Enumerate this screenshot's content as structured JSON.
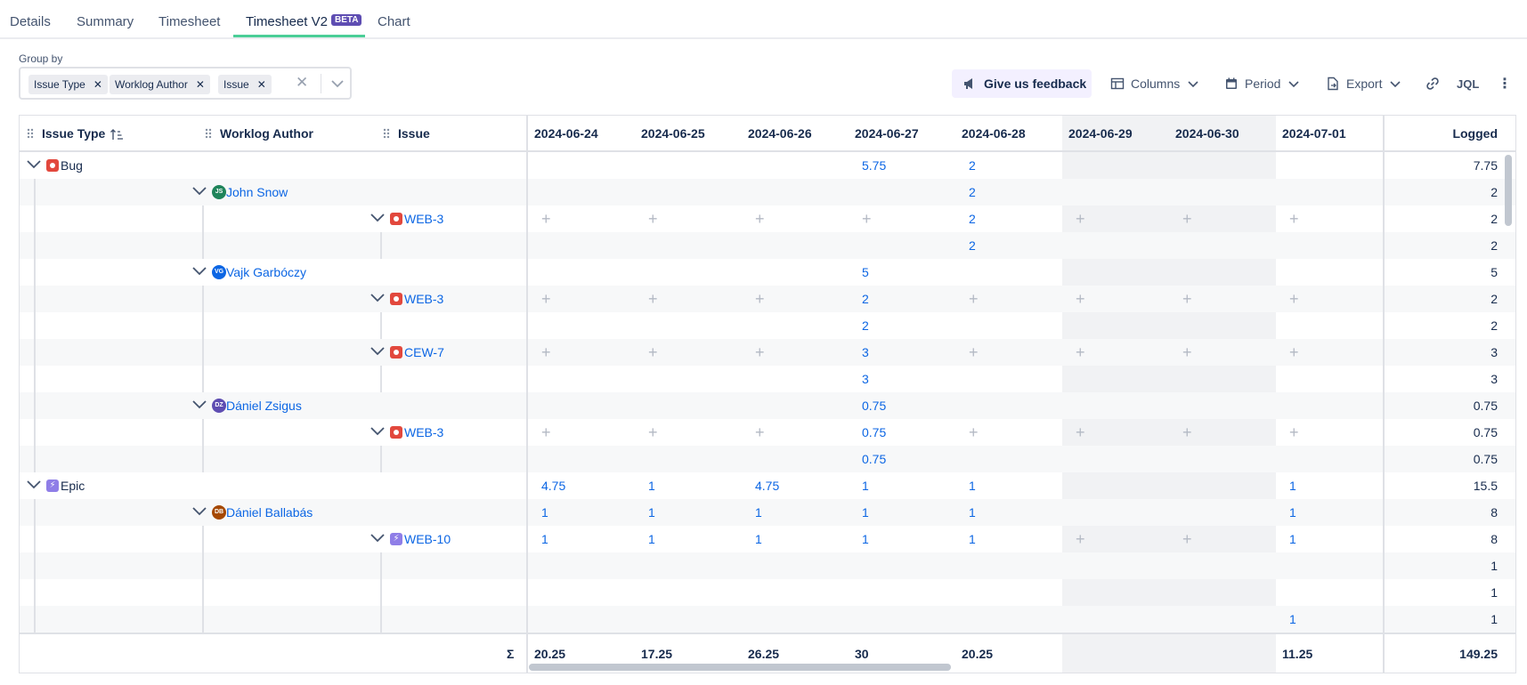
{
  "tabs": [
    {
      "label": "Details"
    },
    {
      "label": "Summary"
    },
    {
      "label": "Timesheet"
    },
    {
      "label": "Timesheet V2",
      "badge": "BETA"
    },
    {
      "label": "Chart"
    }
  ],
  "groupby": {
    "label": "Group by",
    "chips": [
      "Issue Type",
      "Worklog Author",
      "Issue"
    ]
  },
  "toolbar": {
    "feedback": "Give us feedback",
    "columns": "Columns",
    "period": "Period",
    "export": "Export",
    "jql": "JQL"
  },
  "table": {
    "headers": {
      "issue_type": "Issue Type",
      "worklog_author": "Worklog Author",
      "issue": "Issue",
      "logged": "Logged"
    },
    "dates": [
      "2024-06-24",
      "2024-06-25",
      "2024-06-26",
      "2024-06-27",
      "2024-06-28",
      "2024-06-29",
      "2024-06-30",
      "2024-07-01"
    ],
    "rows": [
      {
        "level": 0,
        "label": "Bug",
        "icon": "bug-icon",
        "values": [
          "",
          "",
          "",
          "5.75",
          "2",
          "",
          "",
          ""
        ],
        "logged": "7.75"
      },
      {
        "level": 1,
        "label": "John Snow",
        "initials": "JS",
        "avatar_color": "#1f845a",
        "values": [
          "",
          "",
          "",
          "",
          "2",
          "",
          "",
          ""
        ],
        "logged": "2"
      },
      {
        "level": 2,
        "label": "WEB-3",
        "icon": "bug-icon",
        "values": [
          "+",
          "+",
          "+",
          "+",
          "2",
          "+",
          "+",
          "+"
        ],
        "logged": "2"
      },
      {
        "level": 3,
        "values": [
          "",
          "",
          "",
          "",
          "2",
          "",
          "",
          ""
        ],
        "logged": "2"
      },
      {
        "level": 1,
        "label": "Vajk Garbóczy",
        "initials": "VG",
        "avatar_color": "#0c66e4",
        "values": [
          "",
          "",
          "",
          "5",
          "",
          "",
          "",
          ""
        ],
        "logged": "5"
      },
      {
        "level": 2,
        "label": "WEB-3",
        "icon": "bug-icon",
        "values": [
          "+",
          "+",
          "+",
          "2",
          "+",
          "+",
          "+",
          "+"
        ],
        "logged": "2"
      },
      {
        "level": 3,
        "values": [
          "",
          "",
          "",
          "2",
          "",
          "",
          "",
          ""
        ],
        "logged": "2"
      },
      {
        "level": 2,
        "label": "CEW-7",
        "icon": "bug-icon",
        "values": [
          "+",
          "+",
          "+",
          "3",
          "+",
          "+",
          "+",
          "+"
        ],
        "logged": "3"
      },
      {
        "level": 3,
        "values": [
          "",
          "",
          "",
          "3",
          "",
          "",
          "",
          ""
        ],
        "logged": "3"
      },
      {
        "level": 1,
        "label": "Dániel Zsigus",
        "initials": "DZ",
        "avatar_color": "#5e4db2",
        "values": [
          "",
          "",
          "",
          "0.75",
          "",
          "",
          "",
          ""
        ],
        "logged": "0.75"
      },
      {
        "level": 2,
        "label": "WEB-3",
        "icon": "bug-icon",
        "values": [
          "+",
          "+",
          "+",
          "0.75",
          "+",
          "+",
          "+",
          "+"
        ],
        "logged": "0.75"
      },
      {
        "level": 3,
        "values": [
          "",
          "",
          "",
          "0.75",
          "",
          "",
          "",
          ""
        ],
        "logged": "0.75"
      },
      {
        "level": 0,
        "label": "Epic",
        "icon": "epic-icon",
        "values": [
          "4.75",
          "1",
          "4.75",
          "1",
          "1",
          "",
          "",
          "1"
        ],
        "logged": "15.5"
      },
      {
        "level": 1,
        "label": "Dániel Ballabás",
        "initials": "DB",
        "avatar_color": "#a54800",
        "values": [
          "1",
          "1",
          "1",
          "1",
          "1",
          "",
          "",
          "1"
        ],
        "logged": "8"
      },
      {
        "level": 2,
        "label": "WEB-10",
        "icon": "epic-icon",
        "values": [
          "1",
          "1",
          "1",
          "1",
          "1",
          "+",
          "+",
          "1"
        ],
        "logged": "8"
      },
      {
        "level": 3,
        "values": [
          "",
          "",
          "",
          "",
          "",
          "",
          "",
          ""
        ],
        "logged": "1"
      },
      {
        "level": 3,
        "values": [
          "",
          "",
          "",
          "",
          "",
          "",
          "",
          ""
        ],
        "logged": "1"
      },
      {
        "level": 3,
        "values": [
          "",
          "",
          "",
          "",
          "",
          "",
          "",
          "1"
        ],
        "logged": "1"
      }
    ],
    "footer": {
      "sigma": "Σ",
      "totals": [
        "20.25",
        "17.25",
        "26.25",
        "30",
        "20.25",
        "",
        "",
        "11.25"
      ],
      "logged": "149.25"
    }
  }
}
